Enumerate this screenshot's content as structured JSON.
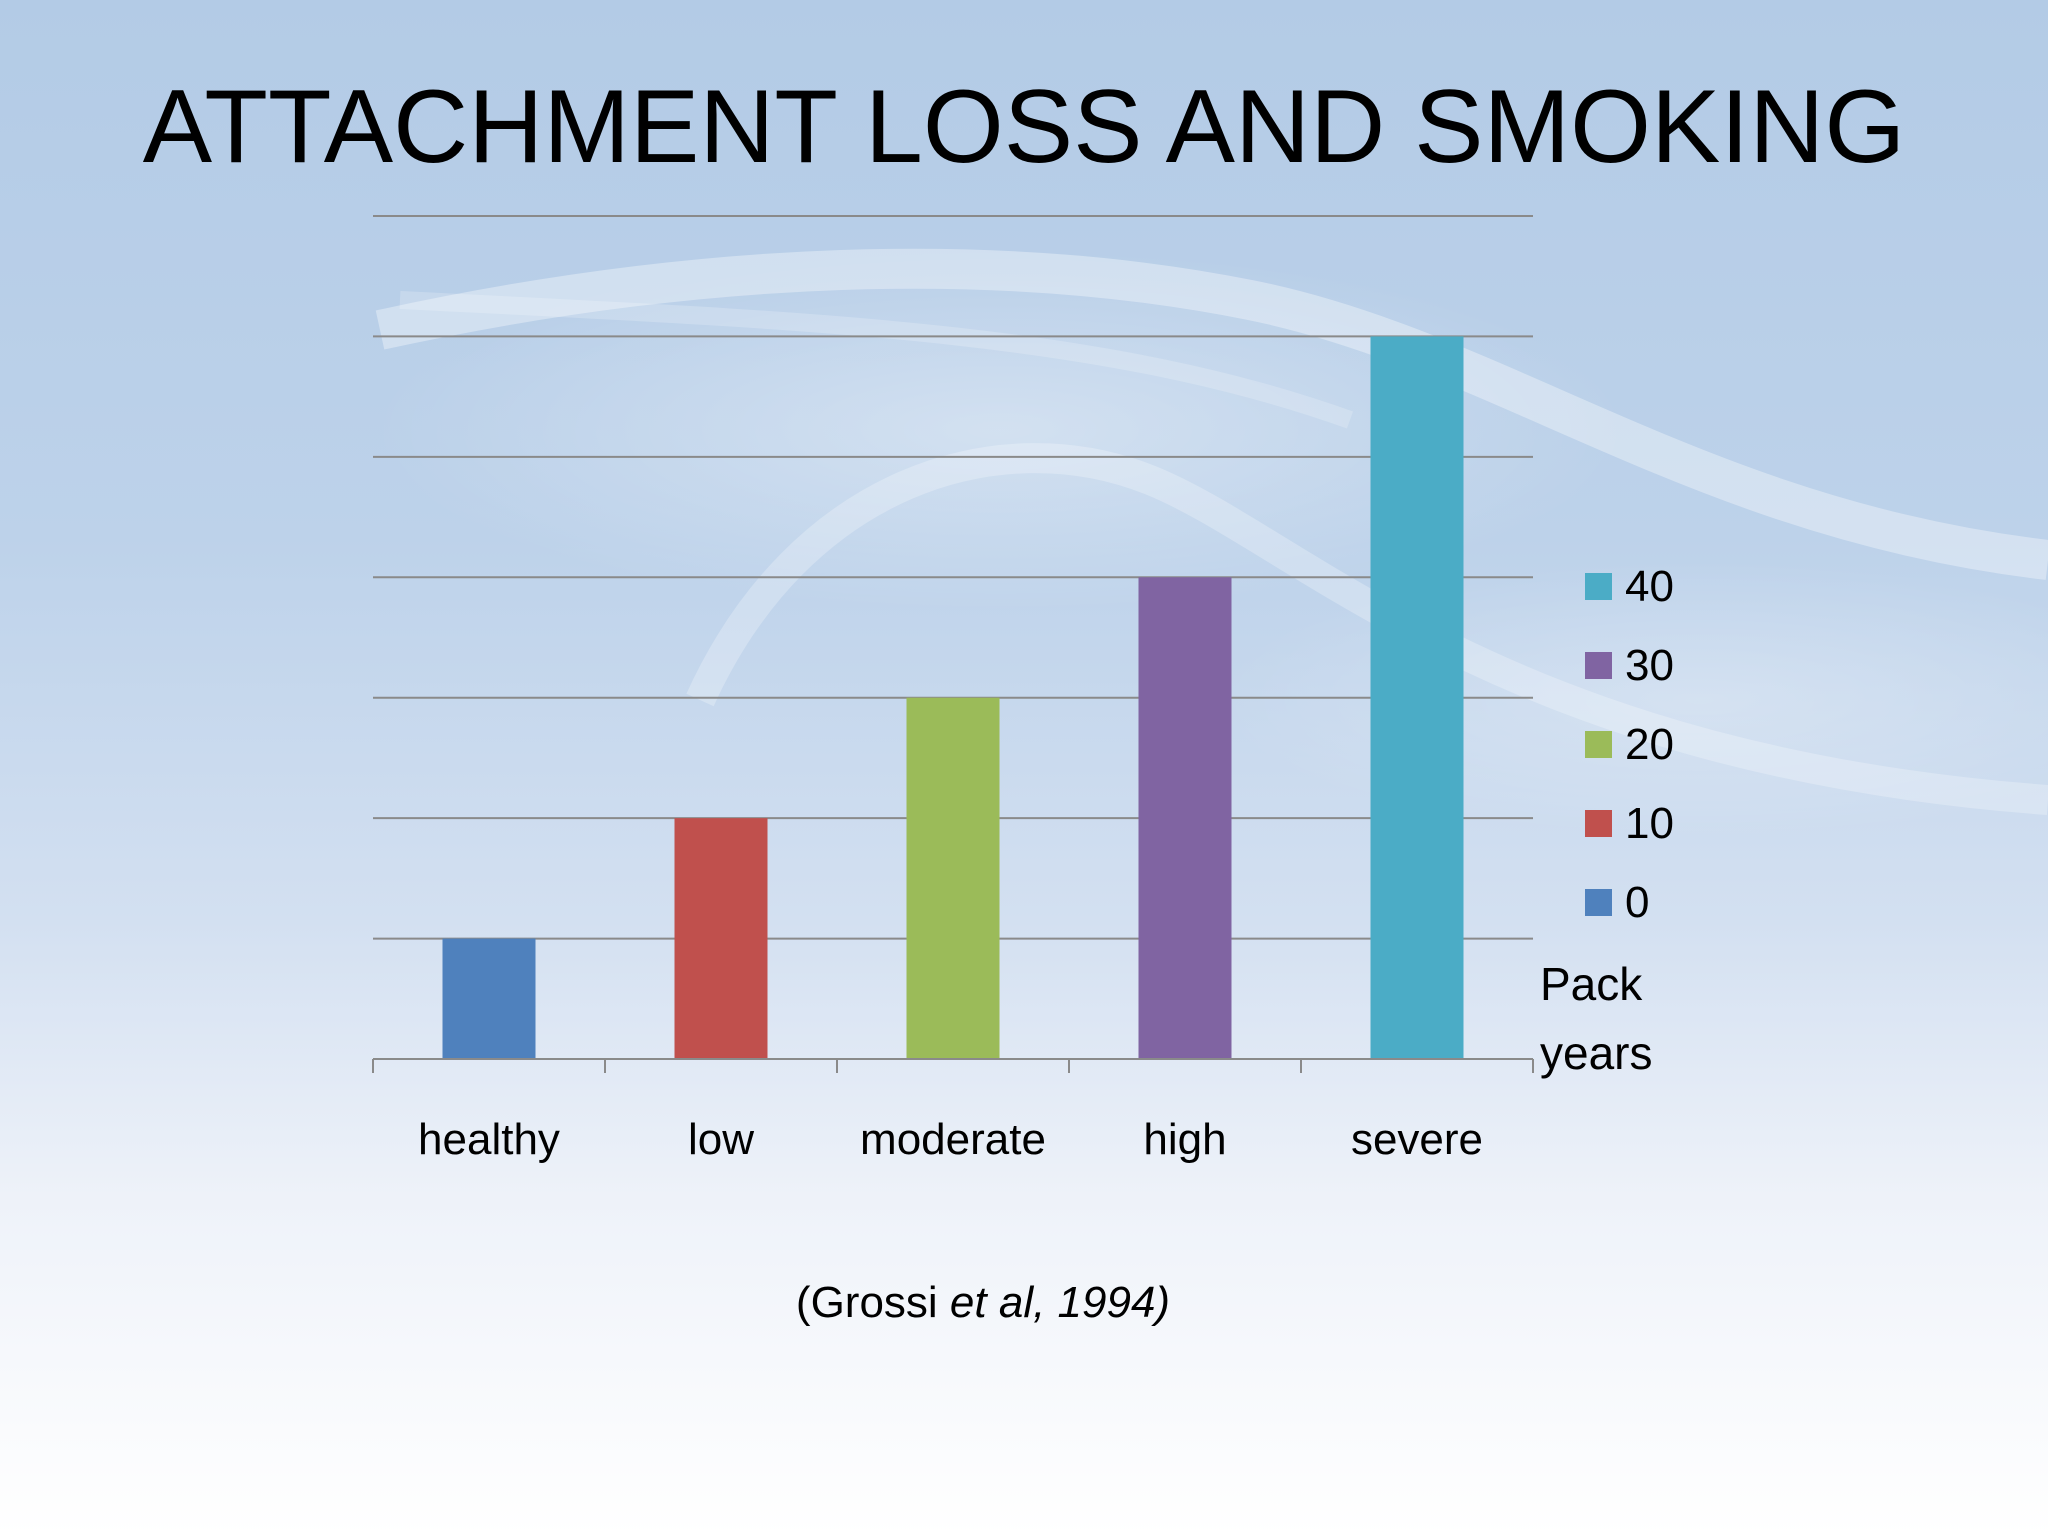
{
  "slide": {
    "title": "ATTACHMENT LOSS AND SMOKING",
    "citation_prefix": "(Grossi ",
    "citation_italic": "et al, 1994)"
  },
  "chart_data": {
    "type": "bar",
    "categories": [
      "healthy",
      "low",
      "moderate",
      "high",
      "severe"
    ],
    "values": [
      10,
      20,
      30,
      40,
      60
    ],
    "ylim": [
      0,
      70
    ],
    "grid": true,
    "y_tick_labels_shown": false,
    "bar_colors": [
      "#4f81bd",
      "#c0504d",
      "#9bbb59",
      "#8064a2",
      "#4bacc6"
    ],
    "legend": {
      "placement": "right",
      "entries": [
        {
          "label": "40",
          "color": "#4bacc6"
        },
        {
          "label": "30",
          "color": "#8064a2"
        },
        {
          "label": "20",
          "color": "#9bbb59"
        },
        {
          "label": "10",
          "color": "#c0504d"
        },
        {
          "label": "0",
          "color": "#4f81bd"
        }
      ]
    },
    "axis_title_lines": [
      "Pack",
      "years"
    ]
  }
}
